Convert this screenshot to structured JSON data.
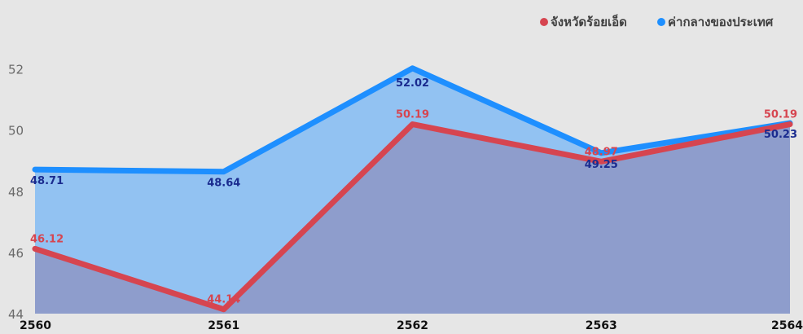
{
  "chart_data": {
    "type": "area",
    "title": "",
    "xlabel": "",
    "ylabel": "",
    "x": [
      "2560",
      "2561",
      "2562",
      "2563",
      "2564"
    ],
    "ylim": [
      44,
      53
    ],
    "yticks": [
      "44",
      "46",
      "48",
      "50",
      "52"
    ],
    "grid": false,
    "legend_position": "top-right",
    "series": [
      {
        "name": "จังหวัดร้อยเอ็ด",
        "color": "#d64550",
        "values": [
          46.12,
          44.14,
          50.19,
          48.97,
          50.19
        ],
        "labels": [
          "46.12",
          "44.14",
          "50.19",
          "48.97",
          "50.19"
        ]
      },
      {
        "name": "ค่ากลางของประเทศ",
        "color": "#1e8fff",
        "values": [
          48.71,
          48.64,
          52.02,
          49.25,
          50.23
        ],
        "labels": [
          "48.71",
          "48.64",
          "52.02",
          "49.25",
          "50.23"
        ]
      }
    ]
  },
  "colors": {
    "background": "#e6e6e6",
    "area_province": "#8e9dcc",
    "area_national": "#92c2f2",
    "label_province": "#d64550",
    "label_national": "#1a2b8f"
  }
}
